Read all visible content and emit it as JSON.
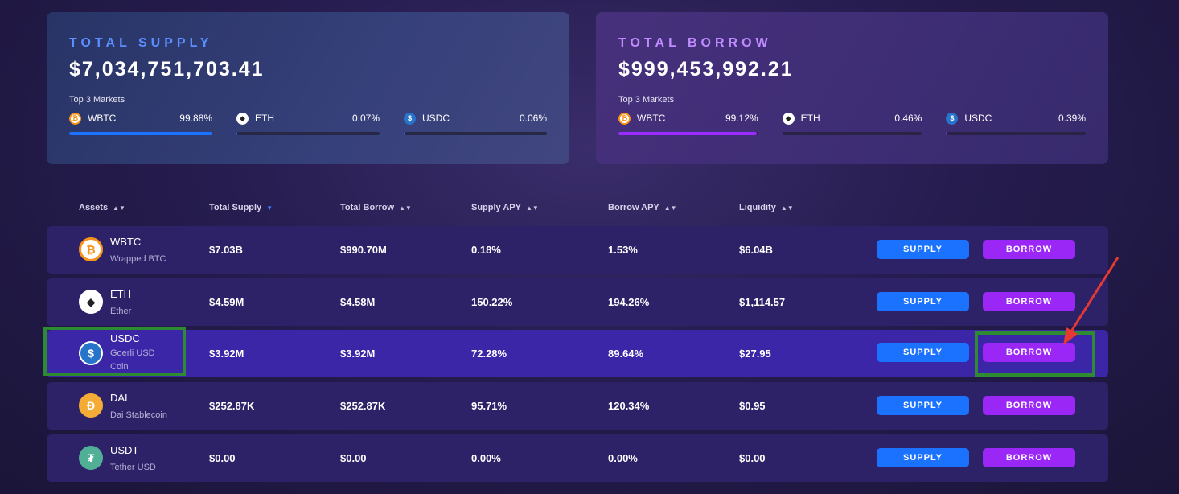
{
  "supply_card": {
    "title": "TOTAL SUPPLY",
    "amount": "$7,034,751,703.41",
    "subtitle": "Top 3 Markets",
    "markets": [
      {
        "icon": "bitcoin-icon",
        "name": "WBTC",
        "percent": "99.88%",
        "fill": 0.9988,
        "color": "#f7931a"
      },
      {
        "icon": "ethereum-icon",
        "name": "ETH",
        "percent": "0.07%",
        "fill": 0.0007,
        "color": "#ffffff"
      },
      {
        "icon": "usdc-icon",
        "name": "USDC",
        "percent": "0.06%",
        "fill": 0.0006,
        "color": "#2775ca"
      }
    ]
  },
  "borrow_card": {
    "title": "TOTAL BORROW",
    "amount": "$999,453,992.21",
    "subtitle": "Top 3 Markets",
    "markets": [
      {
        "icon": "bitcoin-icon",
        "name": "WBTC",
        "percent": "99.12%",
        "fill": 0.9912,
        "color": "#f7931a"
      },
      {
        "icon": "ethereum-icon",
        "name": "ETH",
        "percent": "0.46%",
        "fill": 0.0046,
        "color": "#ffffff"
      },
      {
        "icon": "usdc-icon",
        "name": "USDC",
        "percent": "0.39%",
        "fill": 0.0039,
        "color": "#2775ca"
      }
    ]
  },
  "table": {
    "headers": [
      "Assets",
      "Total Supply",
      "Total Borrow",
      "Supply APY",
      "Borrow APY",
      "Liquidity"
    ],
    "active_sort": "Total Supply",
    "supply_label": "SUPPLY",
    "borrow_label": "BORROW",
    "rows": [
      {
        "symbol": "WBTC",
        "name": "Wrapped BTC",
        "icon": "bitcoin-icon",
        "icon_color": "#f7931a",
        "total_supply": "$7.03B",
        "total_borrow": "$990.70M",
        "supply_apy": "0.18%",
        "borrow_apy": "1.53%",
        "liquidity": "$6.04B"
      },
      {
        "symbol": "ETH",
        "name": "Ether",
        "icon": "ethereum-icon",
        "icon_color": "#ffffff",
        "total_supply": "$4.59M",
        "total_borrow": "$4.58M",
        "supply_apy": "150.22%",
        "borrow_apy": "194.26%",
        "liquidity": "$1,114.57"
      },
      {
        "symbol": "USDC",
        "name": "Goerli USD Coin",
        "icon": "usdc-icon",
        "icon_color": "#2775ca",
        "total_supply": "$3.92M",
        "total_borrow": "$3.92M",
        "supply_apy": "72.28%",
        "borrow_apy": "89.64%",
        "liquidity": "$27.95"
      },
      {
        "symbol": "DAI",
        "name": "Dai Stablecoin",
        "icon": "dai-icon",
        "icon_color": "#f5ac37",
        "total_supply": "$252.87K",
        "total_borrow": "$252.87K",
        "supply_apy": "95.71%",
        "borrow_apy": "120.34%",
        "liquidity": "$0.95"
      },
      {
        "symbol": "USDT",
        "name": "Tether USD",
        "icon": "tether-icon",
        "icon_color": "#50af95",
        "total_supply": "$0.00",
        "total_borrow": "$0.00",
        "supply_apy": "0.00%",
        "borrow_apy": "0.00%",
        "liquidity": "$0.00"
      }
    ]
  },
  "annotation": {
    "box_color": "#2e8b32",
    "arrow_color": "#e53935"
  }
}
